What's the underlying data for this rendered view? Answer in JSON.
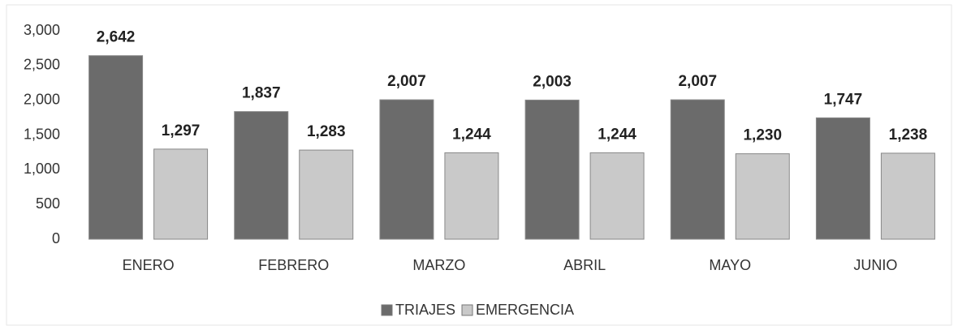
{
  "chart_data": {
    "type": "bar",
    "categories": [
      "ENERO",
      "FEBRERO",
      "MARZO",
      "ABRIL",
      "MAYO",
      "JUNIO"
    ],
    "series": [
      {
        "name": "TRIAJES",
        "color": "#6b6b6b",
        "values": [
          2642,
          1837,
          2007,
          2003,
          2007,
          1747
        ],
        "value_labels": [
          "2,642",
          "1,837",
          "2,007",
          "2,003",
          "2,007",
          "1,747"
        ]
      },
      {
        "name": "EMERGENCIA",
        "color": "#c9c9c9",
        "values": [
          1297,
          1283,
          1244,
          1244,
          1230,
          1238
        ],
        "value_labels": [
          "1,297",
          "1,283",
          "1,244",
          "1,244",
          "1,230",
          "1,238"
        ]
      }
    ],
    "ylim": [
      0,
      3000
    ],
    "yticks": [
      0,
      500,
      {
        "value": 1000,
        "label": "1,000"
      },
      {
        "value": 1500,
        "label": "1,500"
      },
      {
        "value": 2000,
        "label": "2,000"
      },
      {
        "value": 2500,
        "label": "2,500"
      },
      {
        "value": 3000,
        "label": "3,000"
      }
    ],
    "grid": false,
    "legend": "bottom"
  }
}
